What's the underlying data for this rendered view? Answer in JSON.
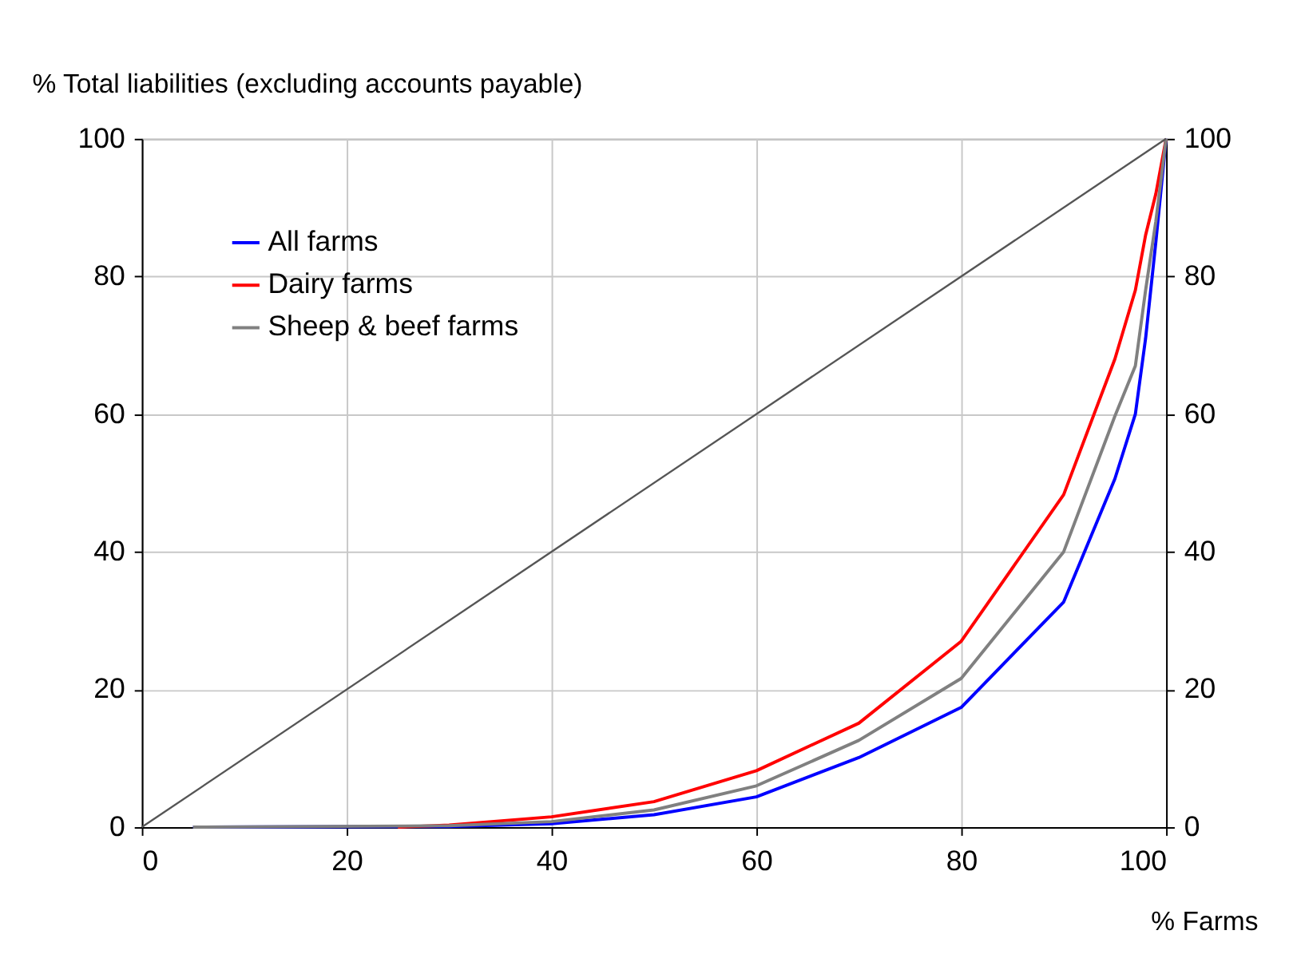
{
  "chart_data": {
    "type": "line",
    "ylabel": "% Total liabilities (excluding accounts payable)",
    "xlabel": "% Farms",
    "xlim": [
      0,
      100
    ],
    "xticks": [
      0,
      20,
      40,
      60,
      80,
      100
    ],
    "ylim": [
      0,
      100
    ],
    "yticks": [
      0,
      20,
      40,
      60,
      80,
      100
    ],
    "y2lim": [
      0,
      100
    ],
    "y2ticks": [
      0,
      20,
      40,
      60,
      80,
      100
    ],
    "grid": true,
    "legend": "top left",
    "marker": "none",
    "line_style": "solid",
    "series": [
      {
        "name": "All farms",
        "color": "#0000ff",
        "x": [
          5,
          30,
          40,
          50,
          60,
          70,
          80,
          90,
          95,
          97,
          98,
          99,
          100
        ],
        "values": [
          0,
          0.1,
          0.5,
          1.8,
          4.4,
          10.1,
          17.4,
          32.7,
          50.6,
          60,
          71,
          85,
          100
        ]
      },
      {
        "name": "Dairy farms",
        "color": "#ff0000",
        "x": [
          25,
          30,
          40,
          50,
          60,
          70,
          80,
          90,
          95,
          97,
          98,
          99,
          100
        ],
        "values": [
          0,
          0.3,
          1.5,
          3.7,
          8.2,
          15.1,
          27,
          48.3,
          68,
          78,
          86,
          92,
          100
        ]
      },
      {
        "name": "Sheep & beef farms",
        "color": "#808080",
        "x": [
          5,
          30,
          40,
          50,
          60,
          70,
          80,
          90,
          95,
          97,
          98,
          99,
          100
        ],
        "values": [
          0,
          0.2,
          0.8,
          2.5,
          6,
          12.6,
          21.6,
          40,
          59.7,
          67,
          78,
          88,
          100
        ]
      },
      {
        "color": "#555555",
        "x": [
          0,
          100
        ],
        "values": [
          0,
          100
        ]
      }
    ]
  }
}
